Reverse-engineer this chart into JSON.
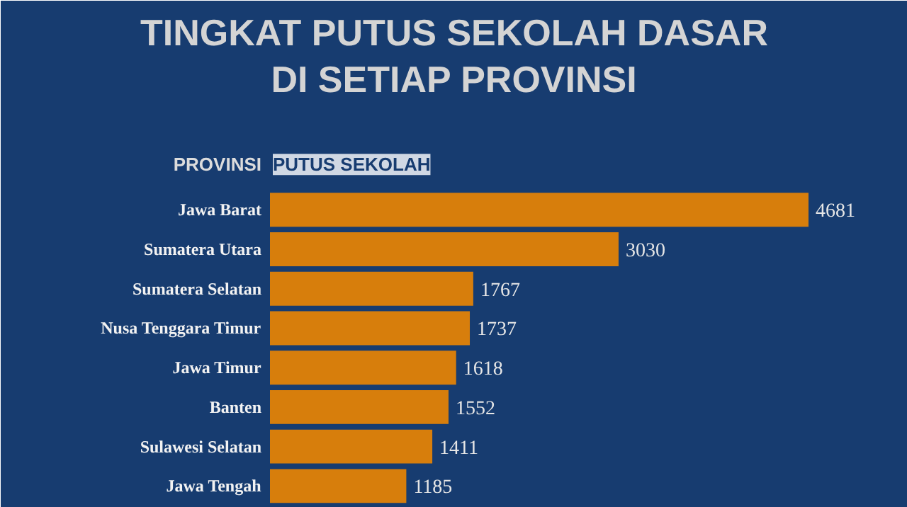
{
  "chart_data": {
    "type": "bar",
    "orientation": "horizontal",
    "title": "TINGKAT PUTUS SEKOLAH DASAR\nDI SETIAP PROVINSI",
    "ylabel": "PROVINSI",
    "xlabel": "PUTUS SEKOLAH",
    "categories": [
      "Jawa Barat",
      "Sumatera Utara",
      "Sumatera Selatan",
      "Nusa Tenggara Timur",
      "Jawa Timur",
      "Banten",
      "Sulawesi Selatan",
      "Jawa Tengah"
    ],
    "values": [
      4681,
      3030,
      1767,
      1737,
      1618,
      1552,
      1411,
      1185
    ],
    "color": "#d77e0c",
    "data_labels": true
  }
}
